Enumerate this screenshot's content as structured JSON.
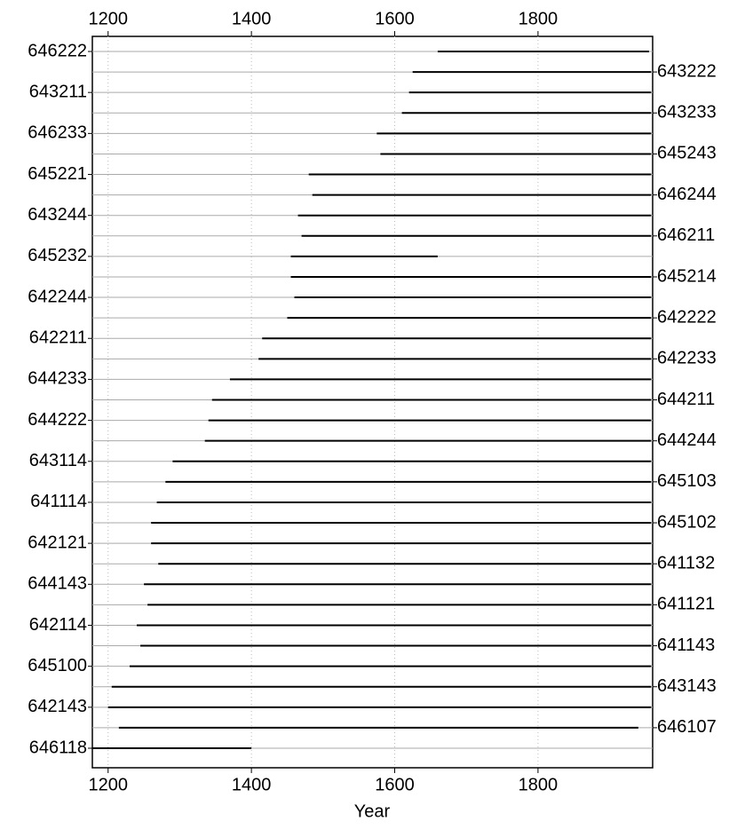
{
  "chart_data": {
    "type": "segment",
    "xlabel": "Year",
    "xlim": [
      1178,
      1960
    ],
    "xticks": [
      1200,
      1400,
      1600,
      1800
    ],
    "grid": true,
    "color": "#000000",
    "series": [
      {
        "name": "646222",
        "start": 1660,
        "end": 1955
      },
      {
        "name": "643222",
        "start": 1625,
        "end": 1958
      },
      {
        "name": "643211",
        "start": 1620,
        "end": 1958
      },
      {
        "name": "643233",
        "start": 1610,
        "end": 1958
      },
      {
        "name": "646233",
        "start": 1575,
        "end": 1958
      },
      {
        "name": "645243",
        "start": 1580,
        "end": 1958
      },
      {
        "name": "645221",
        "start": 1480,
        "end": 1958
      },
      {
        "name": "646244",
        "start": 1485,
        "end": 1958
      },
      {
        "name": "643244",
        "start": 1465,
        "end": 1958
      },
      {
        "name": "646211",
        "start": 1470,
        "end": 1958
      },
      {
        "name": "645232",
        "start": 1455,
        "end": 1660
      },
      {
        "name": "645214",
        "start": 1455,
        "end": 1958
      },
      {
        "name": "642244",
        "start": 1460,
        "end": 1958
      },
      {
        "name": "642222",
        "start": 1450,
        "end": 1958
      },
      {
        "name": "642211",
        "start": 1415,
        "end": 1958
      },
      {
        "name": "642233",
        "start": 1410,
        "end": 1958
      },
      {
        "name": "644233",
        "start": 1370,
        "end": 1958
      },
      {
        "name": "644211",
        "start": 1345,
        "end": 1958
      },
      {
        "name": "644222",
        "start": 1340,
        "end": 1958
      },
      {
        "name": "644244",
        "start": 1335,
        "end": 1958
      },
      {
        "name": "643114",
        "start": 1290,
        "end": 1958
      },
      {
        "name": "645103",
        "start": 1280,
        "end": 1958
      },
      {
        "name": "641114",
        "start": 1268,
        "end": 1958
      },
      {
        "name": "645102",
        "start": 1260,
        "end": 1958
      },
      {
        "name": "642121",
        "start": 1260,
        "end": 1958
      },
      {
        "name": "641132",
        "start": 1270,
        "end": 1958
      },
      {
        "name": "644143",
        "start": 1250,
        "end": 1958
      },
      {
        "name": "641121",
        "start": 1255,
        "end": 1958
      },
      {
        "name": "642114",
        "start": 1240,
        "end": 1958
      },
      {
        "name": "641143",
        "start": 1245,
        "end": 1958
      },
      {
        "name": "645100",
        "start": 1230,
        "end": 1958
      },
      {
        "name": "643143",
        "start": 1205,
        "end": 1958
      },
      {
        "name": "642143",
        "start": 1200,
        "end": 1958
      },
      {
        "name": "646107",
        "start": 1215,
        "end": 1940
      },
      {
        "name": "646118",
        "start": 1178,
        "end": 1400
      }
    ]
  }
}
